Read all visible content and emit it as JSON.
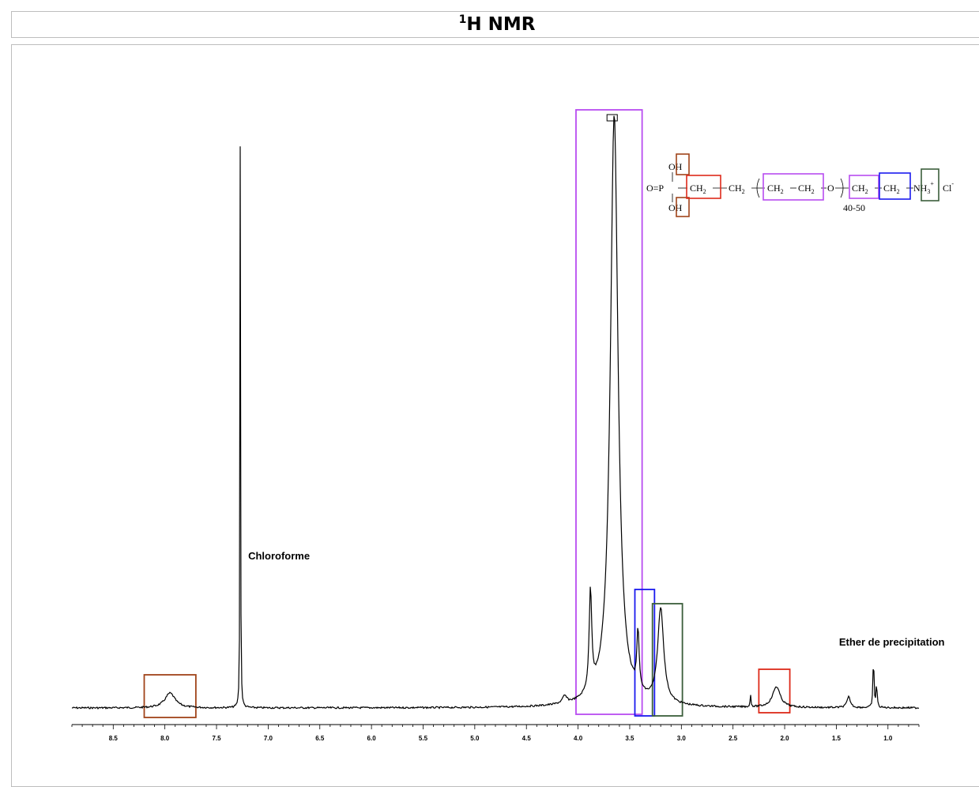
{
  "title": {
    "sup": "1",
    "main": "H NMR"
  },
  "chart_data": {
    "type": "line",
    "title": "1H NMR",
    "xlabel": "",
    "ylabel": "",
    "xlim": [
      8.9,
      0.7
    ],
    "x_reversed": true,
    "ticks": [
      8.5,
      8.0,
      7.5,
      7.0,
      6.5,
      6.0,
      5.5,
      5.0,
      4.5,
      4.0,
      3.5,
      3.0,
      2.5,
      2.0,
      1.5,
      1.0
    ],
    "tick_labels": [
      "8.5",
      "8.0",
      "7.5",
      "7.0",
      "6.5",
      "6.0",
      "5.5",
      "5.0",
      "4.5",
      "4.0",
      "3.5",
      "3.0",
      "2.5",
      "2.0",
      "1.5",
      "1.0"
    ],
    "grid": false,
    "peaks": [
      {
        "ppm": 7.95,
        "rel_height": 0.025,
        "width": 0.12
      },
      {
        "ppm": 7.27,
        "rel_height": 1.0,
        "width": 0.006
      },
      {
        "ppm": 4.13,
        "rel_height": 0.012,
        "width": 0.05
      },
      {
        "ppm": 3.65,
        "rel_height": 1.0,
        "width": 0.09
      },
      {
        "ppm": 3.88,
        "rel_height": 0.17,
        "width": 0.03
      },
      {
        "ppm": 3.42,
        "rel_height": 0.1,
        "width": 0.025
      },
      {
        "ppm": 3.2,
        "rel_height": 0.16,
        "width": 0.07
      },
      {
        "ppm": 2.33,
        "rel_height": 0.02,
        "width": 0.01
      },
      {
        "ppm": 2.08,
        "rel_height": 0.035,
        "width": 0.09
      },
      {
        "ppm": 1.38,
        "rel_height": 0.018,
        "width": 0.04
      },
      {
        "ppm": 1.14,
        "rel_height": 0.085,
        "width": 0.012
      },
      {
        "ppm": 1.11,
        "rel_height": 0.04,
        "width": 0.012
      }
    ],
    "annotations": [
      {
        "text": "Chloroforme",
        "ppm": 7.27
      },
      {
        "text": "Ether de precipitation",
        "ppm": 1.14
      }
    ],
    "highlight_boxes": [
      {
        "ppm_from": 8.2,
        "ppm_to": 7.7,
        "color": "#a0441a"
      },
      {
        "ppm_from": 4.02,
        "ppm_to": 3.38,
        "color": "#b84cf0"
      },
      {
        "ppm_from": 3.45,
        "ppm_to": 3.26,
        "color": "#1a1aee"
      },
      {
        "ppm_from": 3.28,
        "ppm_to": 2.99,
        "color": "#3b5e3b"
      },
      {
        "ppm_from": 2.25,
        "ppm_to": 1.95,
        "color": "#dd2a1a"
      }
    ]
  },
  "structure": {
    "o_eq_p": "O=P",
    "oh_top": "OH",
    "oh_bottom": "OH",
    "ch2_a": "CH",
    "ch2_b": "CH",
    "ch2_c": "CH",
    "ch2_d": "CH",
    "ch2_e": "CH",
    "ch2_f": "CH",
    "sub2": "2",
    "o_link": "O",
    "nh3": "NH",
    "sub3": "3",
    "plus": "+",
    "cl": "Cl",
    "minus": "-",
    "repeat": "40-50"
  },
  "colors": {
    "brown": "#a0441a",
    "violet": "#b84cf0",
    "blue": "#1a1aee",
    "green": "#3b5e3b",
    "red": "#dd2a1a"
  }
}
